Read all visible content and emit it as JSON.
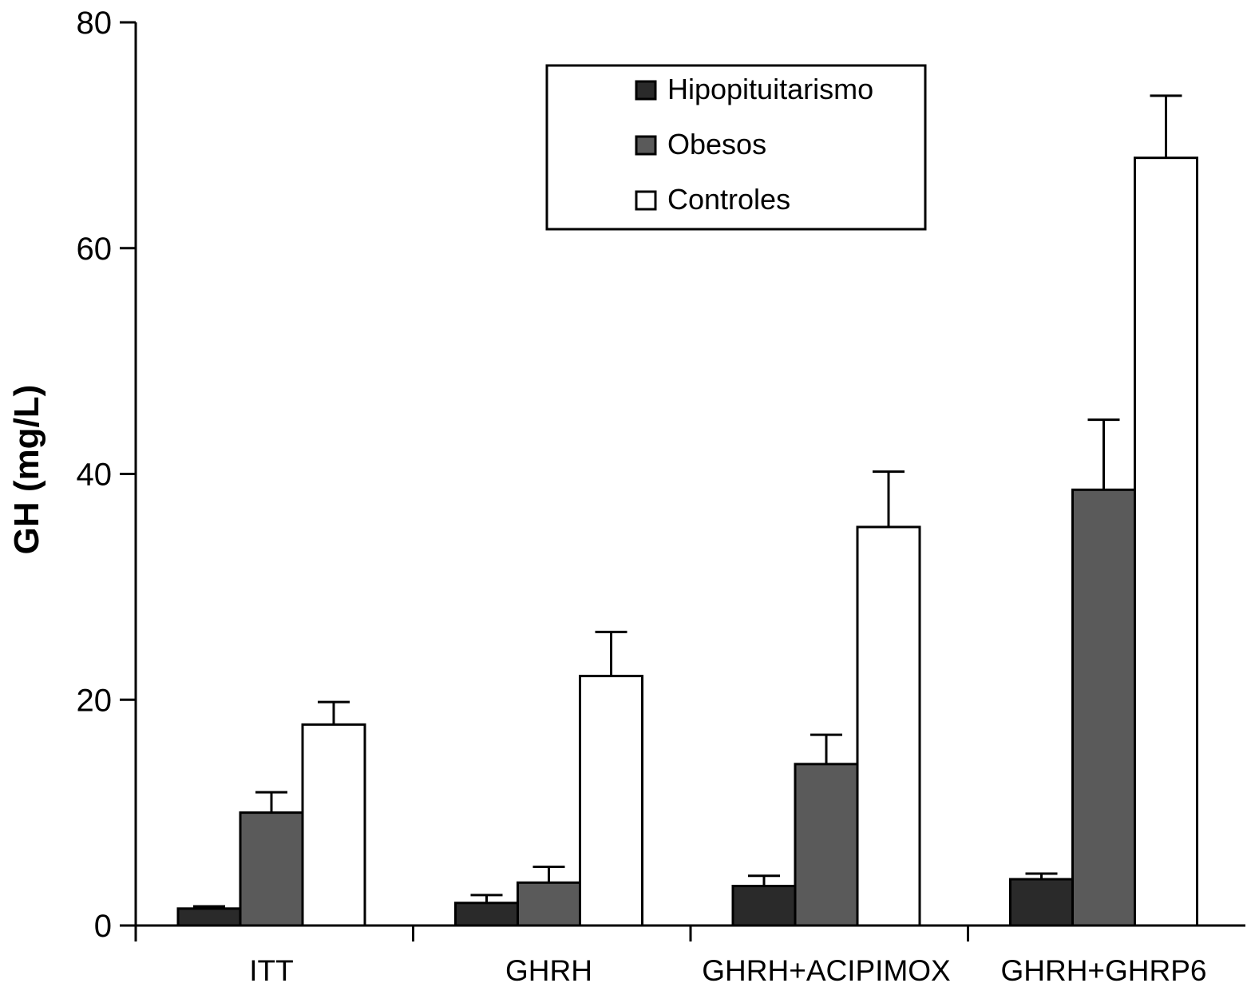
{
  "chart_data": {
    "type": "bar",
    "title": "",
    "xlabel": "",
    "ylabel": "GH (mg/L)",
    "ylim": [
      0,
      80
    ],
    "yticks": [
      "0",
      "20",
      "40",
      "60",
      "80"
    ],
    "categories": [
      "ITT",
      "GHRH",
      "GHRH+ACIPIMOX",
      "GHRH+GHRP6"
    ],
    "series": [
      {
        "name": "Hipopituitarismo",
        "color": "#2a2a2a",
        "values": [
          1.5,
          2.0,
          3.5,
          4.1
        ],
        "errors": [
          0.2,
          0.7,
          0.9,
          0.5
        ]
      },
      {
        "name": "Obesos",
        "color": "#5a5a5a",
        "values": [
          10.0,
          3.8,
          14.3,
          38.6
        ],
        "errors": [
          1.8,
          1.4,
          2.6,
          6.2
        ]
      },
      {
        "name": "Controles",
        "color": "#ffffff",
        "values": [
          17.8,
          22.1,
          35.3,
          68.0
        ],
        "errors": [
          2.0,
          3.9,
          4.9,
          5.5
        ]
      }
    ],
    "legend_position": "top-center",
    "grid": false
  }
}
